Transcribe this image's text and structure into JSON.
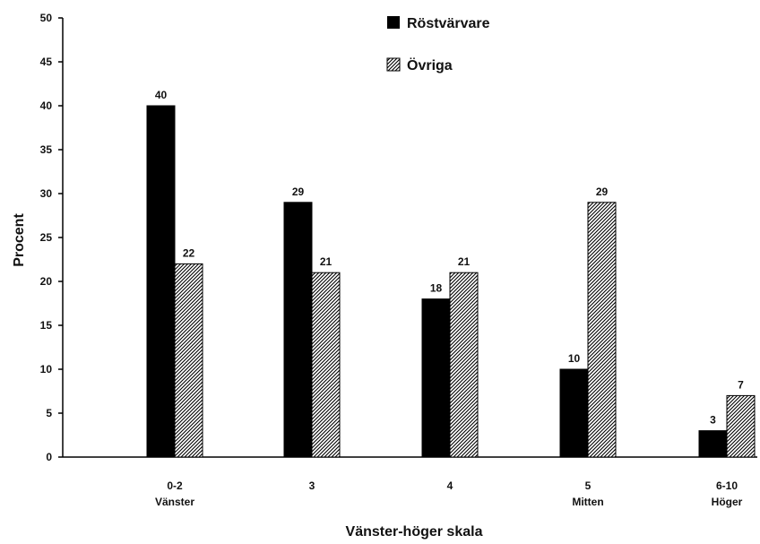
{
  "chart_data": {
    "type": "bar",
    "categories": [
      {
        "line1": "0-2",
        "line2": "Vänster"
      },
      {
        "line1": "3",
        "line2": ""
      },
      {
        "line1": "4",
        "line2": ""
      },
      {
        "line1": "5",
        "line2": "Mitten"
      },
      {
        "line1": "6-10",
        "line2": "Höger"
      }
    ],
    "series": [
      {
        "name": "Röstvärvare",
        "values": [
          40,
          29,
          18,
          10,
          3
        ],
        "fill": "solid",
        "color": "#000000"
      },
      {
        "name": "Övriga",
        "values": [
          22,
          21,
          21,
          29,
          7
        ],
        "fill": "hatched",
        "color": "#000000"
      }
    ],
    "xlabel": "Vänster-höger skala",
    "ylabel": "Procent",
    "ylim": [
      0,
      50
    ],
    "yticks": [
      0,
      5,
      10,
      15,
      20,
      25,
      30,
      35,
      40,
      45,
      50
    ],
    "grid": false,
    "legend_position": "top-center"
  }
}
